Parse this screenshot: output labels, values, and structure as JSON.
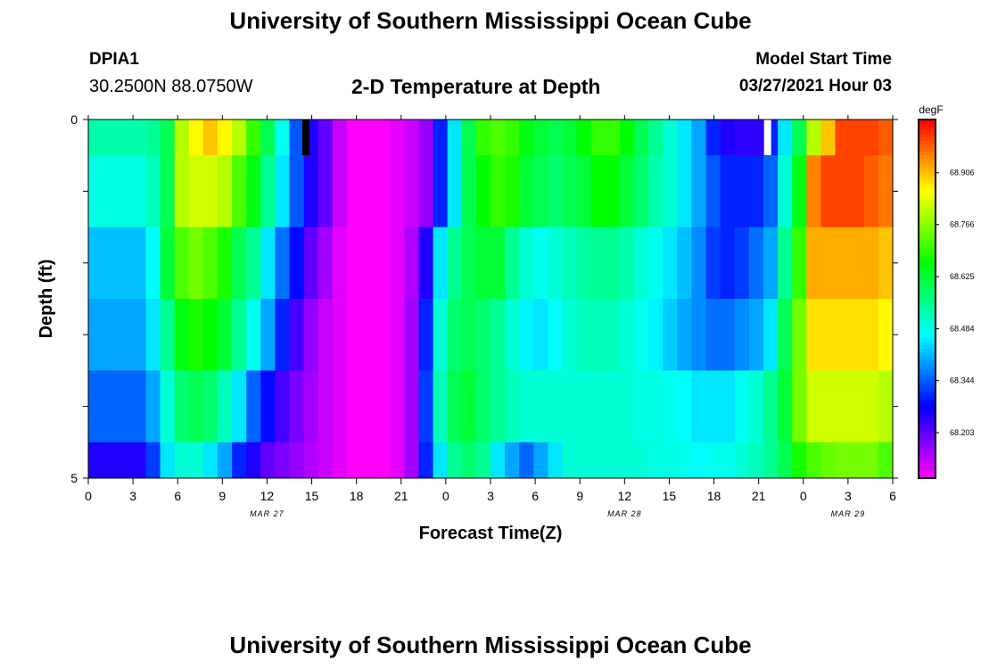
{
  "header": {
    "title": "University of Southern Mississippi Ocean Cube",
    "station_id": "DPIA1",
    "coords": "30.2500N  88.0750W",
    "plot_title": "2-D Temperature at Depth",
    "model_start_label": "Model Start Time",
    "model_start_value": "03/27/2021 Hour 03"
  },
  "footer": {
    "title": "University of Southern Mississippi Ocean Cube"
  },
  "chart_data": {
    "type": "heatmap",
    "title": "2-D Temperature at Depth",
    "xlabel": "Forecast Time(Z)",
    "ylabel": "Depth (ft)",
    "x_tick_labels": [
      "0",
      "3",
      "6",
      "9",
      "12",
      "15",
      "18",
      "21",
      "0",
      "3",
      "6",
      "9",
      "12",
      "15",
      "18",
      "21",
      "0",
      "3",
      "6"
    ],
    "date_labels": [
      {
        "label": "MAR 27",
        "hour": 12
      },
      {
        "label": "MAR 28",
        "hour": 36
      },
      {
        "label": "MAR 29",
        "hour": 51
      }
    ],
    "xlim": [
      0,
      54
    ],
    "y_tick_labels": [
      {
        "value": 0,
        "label": "0"
      },
      {
        "value": 5,
        "label": "5"
      }
    ],
    "ylim": [
      0,
      5
    ],
    "colorbar": {
      "unit": "degF",
      "vmin": 68.08,
      "vmax": 69.05,
      "tick_values": [
        68.203,
        68.344,
        68.484,
        68.625,
        68.766,
        68.906
      ],
      "tick_labels": [
        "68.203",
        "68.344",
        "68.484",
        "68.625",
        "68.766",
        "68.906"
      ]
    },
    "markers": [
      {
        "hour": 14.6,
        "color": "#000000"
      },
      {
        "hour": 45.6,
        "color": "#ffffff"
      }
    ],
    "columns_per_layer": 56,
    "layers": [
      {
        "depth_top": 0,
        "depth_bottom": 0.5,
        "values": [
          68.53,
          68.53,
          68.53,
          68.53,
          68.55,
          68.6,
          68.8,
          68.86,
          68.9,
          68.86,
          68.8,
          68.7,
          68.6,
          68.48,
          68.34,
          68.25,
          68.2,
          68.12,
          68.08,
          68.08,
          68.08,
          68.1,
          68.12,
          68.16,
          68.3,
          68.45,
          68.6,
          68.7,
          68.72,
          68.7,
          68.65,
          68.62,
          68.6,
          68.62,
          68.66,
          68.7,
          68.7,
          68.66,
          68.6,
          68.55,
          68.5,
          68.45,
          68.4,
          68.3,
          68.25,
          68.24,
          68.24,
          68.3,
          68.45,
          68.6,
          68.8,
          68.9,
          69.0,
          69.0,
          69.0,
          68.98
        ]
      },
      {
        "depth_top": 0.5,
        "depth_bottom": 1.5,
        "values": [
          68.49,
          68.49,
          68.49,
          68.49,
          68.52,
          68.6,
          68.8,
          68.82,
          68.82,
          68.8,
          68.72,
          68.65,
          68.55,
          68.45,
          68.34,
          68.25,
          68.2,
          68.12,
          68.08,
          68.08,
          68.08,
          68.1,
          68.12,
          68.16,
          68.3,
          68.45,
          68.6,
          68.66,
          68.7,
          68.68,
          68.62,
          68.6,
          68.58,
          68.6,
          68.62,
          68.66,
          68.66,
          68.62,
          68.58,
          68.53,
          68.5,
          68.45,
          68.4,
          68.34,
          68.3,
          68.3,
          68.3,
          68.35,
          68.5,
          68.65,
          68.95,
          69.0,
          69.0,
          69.0,
          68.98,
          68.96
        ]
      },
      {
        "depth_top": 1.5,
        "depth_bottom": 2.5,
        "values": [
          68.42,
          68.42,
          68.42,
          68.42,
          68.47,
          68.62,
          68.72,
          68.75,
          68.72,
          68.68,
          68.6,
          68.55,
          68.45,
          68.36,
          68.28,
          68.2,
          68.15,
          68.1,
          68.08,
          68.08,
          68.08,
          68.1,
          68.14,
          68.25,
          68.45,
          68.55,
          68.6,
          68.62,
          68.62,
          68.55,
          68.5,
          68.48,
          68.5,
          68.52,
          68.54,
          68.55,
          68.55,
          68.53,
          68.5,
          68.48,
          68.45,
          68.42,
          68.38,
          68.32,
          68.3,
          68.32,
          68.36,
          68.4,
          68.55,
          68.7,
          68.92,
          68.92,
          68.92,
          68.92,
          68.92,
          68.9
        ]
      },
      {
        "depth_top": 2.5,
        "depth_bottom": 3.5,
        "values": [
          68.4,
          68.4,
          68.4,
          68.4,
          68.45,
          68.55,
          68.65,
          68.68,
          68.66,
          68.62,
          68.55,
          68.48,
          68.4,
          68.3,
          68.22,
          68.16,
          68.12,
          68.1,
          68.08,
          68.08,
          68.08,
          68.1,
          68.15,
          68.3,
          68.5,
          68.58,
          68.6,
          68.58,
          68.55,
          68.5,
          68.46,
          68.45,
          68.47,
          68.5,
          68.52,
          68.52,
          68.52,
          68.5,
          68.48,
          68.46,
          68.43,
          68.4,
          68.38,
          68.36,
          68.36,
          68.38,
          68.4,
          68.45,
          68.6,
          68.75,
          68.88,
          68.88,
          68.88,
          68.88,
          68.88,
          68.86
        ]
      },
      {
        "depth_top": 3.5,
        "depth_bottom": 4.5,
        "values": [
          68.35,
          68.35,
          68.35,
          68.35,
          68.4,
          68.5,
          68.58,
          68.6,
          68.58,
          68.52,
          68.45,
          68.35,
          68.28,
          68.22,
          68.18,
          68.15,
          68.12,
          68.1,
          68.08,
          68.08,
          68.08,
          68.1,
          68.15,
          68.32,
          68.52,
          68.6,
          68.62,
          68.58,
          68.55,
          68.52,
          68.5,
          68.5,
          68.5,
          68.5,
          68.5,
          68.5,
          68.5,
          68.5,
          68.49,
          68.49,
          68.48,
          68.47,
          68.45,
          68.45,
          68.45,
          68.48,
          68.5,
          68.55,
          68.62,
          68.75,
          68.82,
          68.82,
          68.82,
          68.82,
          68.82,
          68.8
        ]
      },
      {
        "depth_top": 4.5,
        "depth_bottom": 5.0,
        "values": [
          68.25,
          68.25,
          68.25,
          68.25,
          68.32,
          68.45,
          68.5,
          68.5,
          68.45,
          68.4,
          68.3,
          68.25,
          68.2,
          68.18,
          68.16,
          68.14,
          68.12,
          68.1,
          68.08,
          68.08,
          68.08,
          68.1,
          68.15,
          68.3,
          68.45,
          68.55,
          68.58,
          68.55,
          68.45,
          68.4,
          68.35,
          68.4,
          68.45,
          68.5,
          68.5,
          68.5,
          68.5,
          68.5,
          68.5,
          68.49,
          68.49,
          68.48,
          68.47,
          68.48,
          68.48,
          68.5,
          68.52,
          68.55,
          68.6,
          68.68,
          68.72,
          68.74,
          68.75,
          68.75,
          68.75,
          68.72
        ]
      }
    ]
  }
}
